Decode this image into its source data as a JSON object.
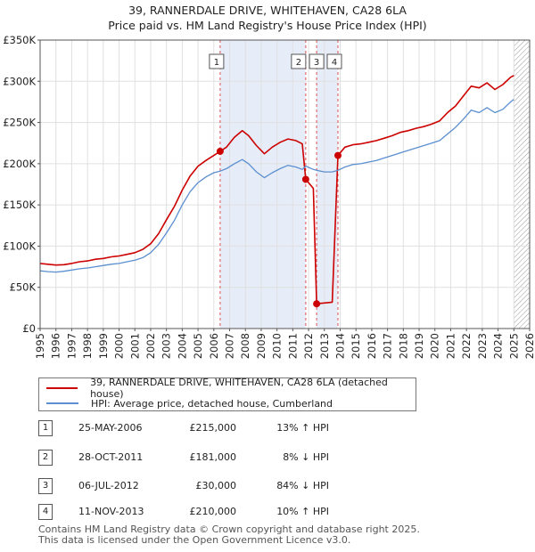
{
  "title_line1": "39, RANNERDALE DRIVE, WHITEHAVEN, CA28 6LA",
  "title_line2": "Price paid vs. HM Land Registry's House Price Index (HPI)",
  "chart_data": {
    "type": "line",
    "title": "39, RANNERDALE DRIVE, WHITEHAVEN, CA28 6LA — Price paid vs. HM Land Registry's House Price Index (HPI)",
    "xlim": [
      1995,
      2026
    ],
    "ylim": [
      0,
      350000
    ],
    "y_ticks": [
      0,
      50000,
      100000,
      150000,
      200000,
      250000,
      300000,
      350000
    ],
    "y_tick_labels": [
      "£0",
      "£50K",
      "£100K",
      "£150K",
      "£200K",
      "£250K",
      "£300K",
      "£350K"
    ],
    "x_ticks": [
      "1995",
      "1996",
      "1997",
      "1998",
      "1999",
      "2000",
      "2001",
      "2002",
      "2003",
      "2004",
      "2005",
      "2006",
      "2007",
      "2008",
      "2009",
      "2010",
      "2011",
      "2012",
      "2013",
      "2014",
      "2015",
      "2016",
      "2017",
      "2018",
      "2019",
      "2020",
      "2021",
      "2022",
      "2023",
      "2024",
      "2025",
      "2026"
    ],
    "hatch_from": 2025.0,
    "shade_regions": [
      [
        2006.4,
        2011.8
      ],
      [
        2012.5,
        2013.85
      ]
    ],
    "colors": {
      "property": "#cc0000",
      "hpi": "#5b8fd0"
    },
    "series": [
      {
        "name": "39, RANNERDALE DRIVE, WHITEHAVEN, CA28 6LA (detached house)",
        "color": "#cc0000",
        "points": [
          [
            1995.0,
            79000
          ],
          [
            1995.5,
            78000
          ],
          [
            1996.0,
            77000
          ],
          [
            1996.5,
            77500
          ],
          [
            1997.0,
            79000
          ],
          [
            1997.5,
            81000
          ],
          [
            1998.0,
            82000
          ],
          [
            1998.5,
            84000
          ],
          [
            1999.0,
            85000
          ],
          [
            1999.5,
            87000
          ],
          [
            2000.0,
            88000
          ],
          [
            2000.5,
            90000
          ],
          [
            2001.0,
            92000
          ],
          [
            2001.5,
            96000
          ],
          [
            2002.0,
            103000
          ],
          [
            2002.5,
            115000
          ],
          [
            2003.0,
            132000
          ],
          [
            2003.5,
            148000
          ],
          [
            2004.0,
            168000
          ],
          [
            2004.5,
            185000
          ],
          [
            2005.0,
            197000
          ],
          [
            2005.5,
            204000
          ],
          [
            2006.0,
            210000
          ],
          [
            2006.4,
            215000
          ],
          [
            2006.8,
            220000
          ],
          [
            2007.3,
            232000
          ],
          [
            2007.8,
            240000
          ],
          [
            2008.2,
            234000
          ],
          [
            2008.7,
            222000
          ],
          [
            2009.2,
            212000
          ],
          [
            2009.7,
            220000
          ],
          [
            2010.2,
            226000
          ],
          [
            2010.7,
            230000
          ],
          [
            2011.2,
            228000
          ],
          [
            2011.6,
            224000
          ],
          [
            2011.82,
            181000
          ],
          [
            2012.3,
            170000
          ],
          [
            2012.51,
            30000
          ],
          [
            2013.0,
            31000
          ],
          [
            2013.5,
            32000
          ],
          [
            2013.86,
            210000
          ],
          [
            2014.3,
            220000
          ],
          [
            2014.8,
            223000
          ],
          [
            2015.3,
            224000
          ],
          [
            2015.8,
            226000
          ],
          [
            2016.3,
            228000
          ],
          [
            2016.8,
            231000
          ],
          [
            2017.3,
            234000
          ],
          [
            2017.8,
            238000
          ],
          [
            2018.3,
            240000
          ],
          [
            2018.8,
            243000
          ],
          [
            2019.3,
            245000
          ],
          [
            2019.8,
            248000
          ],
          [
            2020.3,
            252000
          ],
          [
            2020.8,
            262000
          ],
          [
            2021.3,
            270000
          ],
          [
            2021.8,
            282000
          ],
          [
            2022.3,
            294000
          ],
          [
            2022.8,
            292000
          ],
          [
            2023.3,
            298000
          ],
          [
            2023.8,
            290000
          ],
          [
            2024.3,
            296000
          ],
          [
            2024.8,
            305000
          ],
          [
            2025.0,
            307000
          ]
        ]
      },
      {
        "name": "HPI: Average price, detached house, Cumberland",
        "color": "#5b8fd0",
        "points": [
          [
            1995.0,
            70000
          ],
          [
            1995.5,
            69000
          ],
          [
            1996.0,
            68500
          ],
          [
            1996.5,
            69500
          ],
          [
            1997.0,
            71000
          ],
          [
            1997.5,
            72500
          ],
          [
            1998.0,
            73500
          ],
          [
            1998.5,
            75000
          ],
          [
            1999.0,
            76500
          ],
          [
            1999.5,
            78000
          ],
          [
            2000.0,
            79000
          ],
          [
            2000.5,
            81000
          ],
          [
            2001.0,
            83000
          ],
          [
            2001.5,
            86000
          ],
          [
            2002.0,
            92000
          ],
          [
            2002.5,
            102000
          ],
          [
            2003.0,
            116000
          ],
          [
            2003.5,
            131000
          ],
          [
            2004.0,
            150000
          ],
          [
            2004.5,
            166000
          ],
          [
            2005.0,
            177000
          ],
          [
            2005.5,
            184000
          ],
          [
            2006.0,
            189000
          ],
          [
            2006.4,
            191000
          ],
          [
            2006.8,
            194000
          ],
          [
            2007.3,
            200000
          ],
          [
            2007.8,
            205000
          ],
          [
            2008.2,
            200000
          ],
          [
            2008.7,
            190000
          ],
          [
            2009.2,
            183000
          ],
          [
            2009.7,
            189000
          ],
          [
            2010.2,
            194000
          ],
          [
            2010.7,
            198000
          ],
          [
            2011.2,
            196000
          ],
          [
            2011.6,
            193000
          ],
          [
            2011.82,
            197000
          ],
          [
            2012.3,
            193000
          ],
          [
            2012.51,
            192000
          ],
          [
            2013.0,
            190000
          ],
          [
            2013.5,
            190000
          ],
          [
            2013.86,
            192000
          ],
          [
            2014.3,
            196000
          ],
          [
            2014.8,
            199000
          ],
          [
            2015.3,
            200000
          ],
          [
            2015.8,
            202000
          ],
          [
            2016.3,
            204000
          ],
          [
            2016.8,
            207000
          ],
          [
            2017.3,
            210000
          ],
          [
            2017.8,
            213000
          ],
          [
            2018.3,
            216000
          ],
          [
            2018.8,
            219000
          ],
          [
            2019.3,
            222000
          ],
          [
            2019.8,
            225000
          ],
          [
            2020.3,
            228000
          ],
          [
            2020.8,
            236000
          ],
          [
            2021.3,
            244000
          ],
          [
            2021.8,
            254000
          ],
          [
            2022.3,
            265000
          ],
          [
            2022.8,
            262000
          ],
          [
            2023.3,
            268000
          ],
          [
            2023.8,
            262000
          ],
          [
            2024.3,
            266000
          ],
          [
            2024.8,
            275000
          ],
          [
            2025.0,
            278000
          ]
        ]
      }
    ],
    "sales": [
      {
        "label": "1",
        "x": 2006.4,
        "price": 215000
      },
      {
        "label": "2",
        "x": 2011.82,
        "price": 181000
      },
      {
        "label": "3",
        "x": 2012.51,
        "price": 30000
      },
      {
        "label": "4",
        "x": 2013.86,
        "price": 210000
      }
    ]
  },
  "legend": {
    "property_label": "39, RANNERDALE DRIVE, WHITEHAVEN, CA28 6LA (detached house)",
    "hpi_label": "HPI: Average price, detached house, Cumberland"
  },
  "transactions": [
    {
      "num": "1",
      "date": "25-MAY-2006",
      "price": "£215,000",
      "hpi": "13% ↑ HPI"
    },
    {
      "num": "2",
      "date": "28-OCT-2011",
      "price": "£181,000",
      "hpi": "8% ↓ HPI"
    },
    {
      "num": "3",
      "date": "06-JUL-2012",
      "price": "£30,000",
      "hpi": "84% ↓ HPI"
    },
    {
      "num": "4",
      "date": "11-NOV-2013",
      "price": "£210,000",
      "hpi": "10% ↑ HPI"
    }
  ],
  "footer": {
    "line1": "Contains HM Land Registry data © Crown copyright and database right 2025.",
    "line2": "This data is licensed under the Open Government Licence v3.0."
  }
}
